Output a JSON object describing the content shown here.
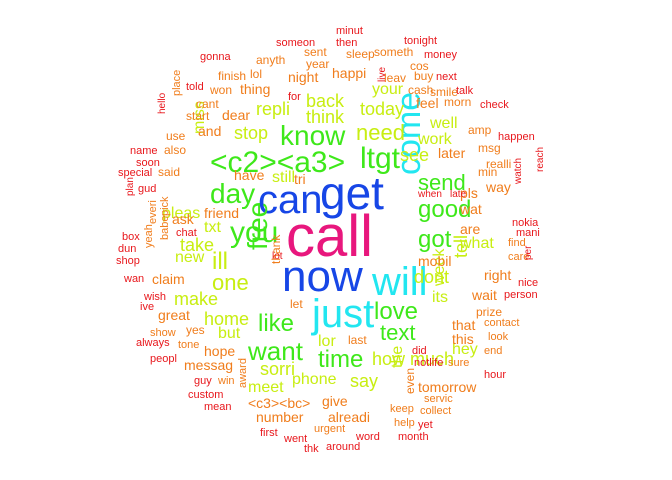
{
  "palette": {
    "pink": "#e8177d",
    "blue": "#1746e6",
    "cyan": "#22e6f0",
    "green": "#3ee81a",
    "lime": "#c8ee12",
    "orange": "#f07d1c",
    "red": "#e8171c"
  },
  "words": [
    {
      "text": "call",
      "color": "pink"
    },
    {
      "text": "now",
      "color": "blue"
    },
    {
      "text": "get",
      "color": "blue"
    },
    {
      "text": "can",
      "color": "blue"
    },
    {
      "text": "will",
      "color": "cyan"
    },
    {
      "text": "just",
      "color": "cyan"
    },
    {
      "text": "come",
      "color": "cyan"
    },
    {
      "text": "<c2><a3>",
      "color": "green"
    },
    {
      "text": "know",
      "color": "green"
    },
    {
      "text": "ltgt",
      "color": "green"
    },
    {
      "text": "you",
      "color": "green"
    },
    {
      "text": "day",
      "color": "green"
    },
    {
      "text": "free",
      "color": "green"
    },
    {
      "text": "love",
      "color": "green"
    },
    {
      "text": "good",
      "color": "green"
    },
    {
      "text": "like",
      "color": "green"
    },
    {
      "text": "want",
      "color": "green"
    },
    {
      "text": "time",
      "color": "green"
    },
    {
      "text": "text",
      "color": "green"
    },
    {
      "text": "send",
      "color": "green"
    },
    {
      "text": "got",
      "color": "green"
    },
    {
      "text": "need",
      "color": "lime"
    },
    {
      "text": "ill",
      "color": "lime"
    },
    {
      "text": "one",
      "color": "lime"
    },
    {
      "text": "back",
      "color": "lime"
    },
    {
      "text": "think",
      "color": "lime"
    },
    {
      "text": "repli",
      "color": "lime"
    },
    {
      "text": "today",
      "color": "lime"
    },
    {
      "text": "stop",
      "color": "lime"
    },
    {
      "text": "still",
      "color": "lime"
    },
    {
      "text": "see",
      "color": "lime"
    },
    {
      "text": "dont",
      "color": "lime"
    },
    {
      "text": "take",
      "color": "lime"
    },
    {
      "text": "make",
      "color": "lime"
    },
    {
      "text": "home",
      "color": "lime"
    },
    {
      "text": "how",
      "color": "lime"
    },
    {
      "text": "much",
      "color": "lime"
    },
    {
      "text": "week",
      "color": "lime"
    },
    {
      "text": "tell",
      "color": "lime"
    },
    {
      "text": "sorri",
      "color": "lime"
    },
    {
      "text": "say",
      "color": "lime"
    },
    {
      "text": "phone",
      "color": "lime"
    },
    {
      "text": "lor",
      "color": "lime"
    },
    {
      "text": "meet",
      "color": "lime"
    },
    {
      "text": "the",
      "color": "lime"
    },
    {
      "text": "new",
      "color": "lime"
    },
    {
      "text": "miss",
      "color": "lime"
    },
    {
      "text": "pleas",
      "color": "lime"
    },
    {
      "text": "work",
      "color": "lime"
    },
    {
      "text": "well",
      "color": "lime"
    },
    {
      "text": "your",
      "color": "lime"
    },
    {
      "text": "what",
      "color": "lime"
    },
    {
      "text": "its",
      "color": "lime"
    },
    {
      "text": "but",
      "color": "lime"
    },
    {
      "text": "hey",
      "color": "lime"
    },
    {
      "text": "txt",
      "color": "lime"
    },
    {
      "text": "night",
      "color": "orange"
    },
    {
      "text": "happi",
      "color": "orange"
    },
    {
      "text": "thing",
      "color": "orange"
    },
    {
      "text": "dear",
      "color": "orange"
    },
    {
      "text": "and",
      "color": "orange"
    },
    {
      "text": "feel",
      "color": "orange"
    },
    {
      "text": "later",
      "color": "orange"
    },
    {
      "text": "have",
      "color": "orange"
    },
    {
      "text": "tri",
      "color": "orange"
    },
    {
      "text": "friend",
      "color": "orange"
    },
    {
      "text": "ask",
      "color": "orange"
    },
    {
      "text": "wat",
      "color": "orange"
    },
    {
      "text": "pls",
      "color": "orange"
    },
    {
      "text": "way",
      "color": "orange"
    },
    {
      "text": "are",
      "color": "orange"
    },
    {
      "text": "mobil",
      "color": "orange"
    },
    {
      "text": "right",
      "color": "orange"
    },
    {
      "text": "wait",
      "color": "orange"
    },
    {
      "text": "claim",
      "color": "orange"
    },
    {
      "text": "great",
      "color": "orange"
    },
    {
      "text": "that",
      "color": "orange"
    },
    {
      "text": "this",
      "color": "orange"
    },
    {
      "text": "hope",
      "color": "orange"
    },
    {
      "text": "messag",
      "color": "orange"
    },
    {
      "text": "number",
      "color": "orange"
    },
    {
      "text": "<c3><bc>",
      "color": "orange"
    },
    {
      "text": "give",
      "color": "orange"
    },
    {
      "text": "alreadi",
      "color": "orange"
    },
    {
      "text": "tomorrow",
      "color": "orange"
    },
    {
      "text": "last",
      "color": "orange"
    },
    {
      "text": "yes",
      "color": "orange"
    },
    {
      "text": "thank",
      "color": "orange"
    },
    {
      "text": "said",
      "color": "orange"
    },
    {
      "text": "prize",
      "color": "orange"
    },
    {
      "text": "even",
      "color": "orange"
    },
    {
      "text": "let",
      "color": "orange"
    },
    {
      "text": "min",
      "color": "orange"
    },
    {
      "text": "amp",
      "color": "orange"
    },
    {
      "text": "msg",
      "color": "orange"
    },
    {
      "text": "realli",
      "color": "orange"
    },
    {
      "text": "leav",
      "color": "orange"
    },
    {
      "text": "cos",
      "color": "orange"
    },
    {
      "text": "year",
      "color": "orange"
    },
    {
      "text": "anyth",
      "color": "orange"
    },
    {
      "text": "sent",
      "color": "orange"
    },
    {
      "text": "sleep",
      "color": "orange"
    },
    {
      "text": "someth",
      "color": "orange"
    },
    {
      "text": "lol",
      "color": "orange"
    },
    {
      "text": "finish",
      "color": "orange"
    },
    {
      "text": "won",
      "color": "orange"
    },
    {
      "text": "cant",
      "color": "orange"
    },
    {
      "text": "start",
      "color": "orange"
    },
    {
      "text": "place",
      "color": "orange"
    },
    {
      "text": "use",
      "color": "orange"
    },
    {
      "text": "also",
      "color": "orange"
    },
    {
      "text": "cash",
      "color": "orange"
    },
    {
      "text": "buy",
      "color": "orange"
    },
    {
      "text": "morn",
      "color": "orange"
    },
    {
      "text": "smile",
      "color": "orange"
    },
    {
      "text": "everi",
      "color": "orange"
    },
    {
      "text": "pick",
      "color": "orange"
    },
    {
      "text": "yeah",
      "color": "orange"
    },
    {
      "text": "babe",
      "color": "orange"
    },
    {
      "text": "find",
      "color": "orange"
    },
    {
      "text": "care",
      "color": "orange"
    },
    {
      "text": "look",
      "color": "orange"
    },
    {
      "text": "contact",
      "color": "orange"
    },
    {
      "text": "end",
      "color": "orange"
    },
    {
      "text": "sure",
      "color": "orange"
    },
    {
      "text": "servic",
      "color": "orange"
    },
    {
      "text": "collect",
      "color": "orange"
    },
    {
      "text": "keep",
      "color": "orange"
    },
    {
      "text": "help",
      "color": "orange"
    },
    {
      "text": "urgent",
      "color": "orange"
    },
    {
      "text": "win",
      "color": "orange"
    },
    {
      "text": "award",
      "color": "orange"
    },
    {
      "text": "tone",
      "color": "orange"
    },
    {
      "text": "show",
      "color": "orange"
    },
    {
      "text": "gonna",
      "color": "red"
    },
    {
      "text": "someon",
      "color": "red"
    },
    {
      "text": "minut",
      "color": "red"
    },
    {
      "text": "then",
      "color": "red"
    },
    {
      "text": "tonight",
      "color": "red"
    },
    {
      "text": "money",
      "color": "red"
    },
    {
      "text": "for",
      "color": "red"
    },
    {
      "text": "live",
      "color": "red"
    },
    {
      "text": "told",
      "color": "red"
    },
    {
      "text": "next",
      "color": "red"
    },
    {
      "text": "talk",
      "color": "red"
    },
    {
      "text": "check",
      "color": "red"
    },
    {
      "text": "hello",
      "color": "red"
    },
    {
      "text": "happen",
      "color": "red"
    },
    {
      "text": "name",
      "color": "red"
    },
    {
      "text": "soon",
      "color": "red"
    },
    {
      "text": "special",
      "color": "red"
    },
    {
      "text": "gud",
      "color": "red"
    },
    {
      "text": "plan",
      "color": "red"
    },
    {
      "text": "chat",
      "color": "red"
    },
    {
      "text": "box",
      "color": "red"
    },
    {
      "text": "dun",
      "color": "red"
    },
    {
      "text": "shop",
      "color": "red"
    },
    {
      "text": "wan",
      "color": "red"
    },
    {
      "text": "ive",
      "color": "red"
    },
    {
      "text": "always",
      "color": "red"
    },
    {
      "text": "peopl",
      "color": "red"
    },
    {
      "text": "guy",
      "color": "red"
    },
    {
      "text": "custom",
      "color": "red"
    },
    {
      "text": "mean",
      "color": "red"
    },
    {
      "text": "wish",
      "color": "red"
    },
    {
      "text": "lot",
      "color": "red"
    },
    {
      "text": "first",
      "color": "red"
    },
    {
      "text": "went",
      "color": "red"
    },
    {
      "text": "thk",
      "color": "red"
    },
    {
      "text": "around",
      "color": "red"
    },
    {
      "text": "word",
      "color": "red"
    },
    {
      "text": "month",
      "color": "red"
    },
    {
      "text": "yet",
      "color": "red"
    },
    {
      "text": "hour",
      "color": "red"
    },
    {
      "text": "did",
      "color": "red"
    },
    {
      "text": "notlife",
      "color": "red"
    },
    {
      "text": "when",
      "color": "red"
    },
    {
      "text": "late",
      "color": "red"
    },
    {
      "text": "nokia",
      "color": "red"
    },
    {
      "text": "mani",
      "color": "red"
    },
    {
      "text": "watch",
      "color": "red"
    },
    {
      "text": "reach",
      "color": "red"
    },
    {
      "text": "per",
      "color": "red"
    },
    {
      "text": "nice",
      "color": "red"
    },
    {
      "text": "person",
      "color": "red"
    }
  ]
}
